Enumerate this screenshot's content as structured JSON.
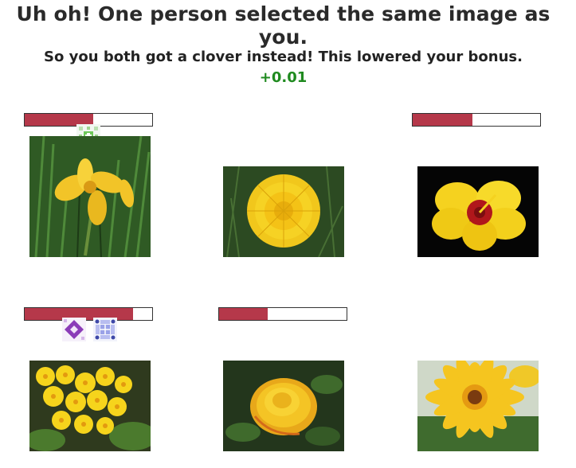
{
  "header": {
    "title": "Uh oh! One person selected the same image as you.",
    "subtitle": "So you both got a clover instead! This lowered your bonus.",
    "bonus": "+0.01"
  },
  "colors": {
    "bar_fill": "#b5384a",
    "bonus_text": "#1f8a1f"
  },
  "images": [
    {
      "subject": "yellow-iris-flower",
      "selection_fraction": 0.54,
      "avatar_icons": [
        "green-clover-avatar-icon"
      ]
    },
    {
      "subject": "dandelion-flower",
      "selection_fraction": 0,
      "avatar_icons": []
    },
    {
      "subject": "yellow-hibiscus-flower",
      "selection_fraction": 0.47,
      "avatar_icons": []
    },
    {
      "subject": "yellow-primrose-flowers",
      "selection_fraction": 0.85,
      "avatar_icons": [
        "purple-diamond-avatar-icon",
        "blue-grid-avatar-icon"
      ]
    },
    {
      "subject": "yellow-rose-flower",
      "selection_fraction": 0.38,
      "avatar_icons": []
    },
    {
      "subject": "yellow-gerbera-daisy",
      "selection_fraction": 0,
      "avatar_icons": []
    }
  ]
}
